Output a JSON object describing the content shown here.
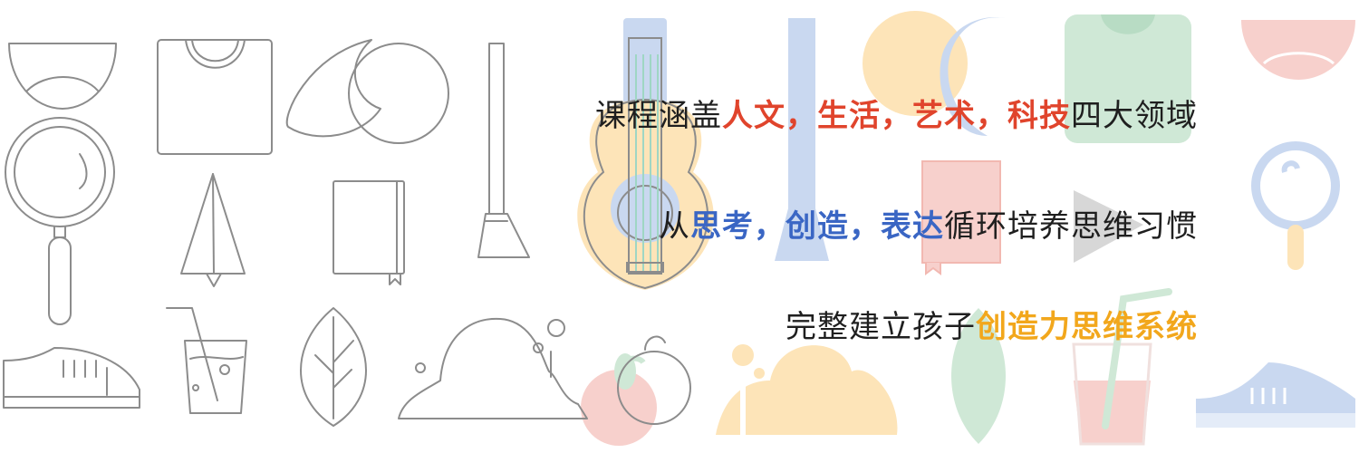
{
  "banner": {
    "line1": [
      {
        "text": "课程涵盖",
        "style": "plain"
      },
      {
        "text": "人文，生活，艺术，科技",
        "style": "red"
      },
      {
        "text": "四大领域",
        "style": "plain"
      }
    ],
    "line2": [
      {
        "text": "从",
        "style": "plain"
      },
      {
        "text": "思考，创造，表达",
        "style": "blue"
      },
      {
        "text": "循环培养思维习惯",
        "style": "plain"
      }
    ],
    "line3": [
      {
        "text": "完整建立孩子",
        "style": "plain"
      },
      {
        "text": "创造力思维系统",
        "style": "orange"
      }
    ]
  },
  "colors": {
    "outline": "#8c8c8c",
    "pastel_blue": "#c9d8f0",
    "pastel_orange": "#fde4b8",
    "pastel_green": "#cfe8d6",
    "pastel_pink": "#f7d0cc",
    "accent_red": "#e0442c",
    "accent_blue": "#3a66c4",
    "accent_orange": "#f2a71c"
  },
  "icons": [
    "half-bowl-icon",
    "tshirt-icon",
    "moon-icon",
    "sun-circle-icon",
    "toothbrush-icon",
    "magnifier-icon",
    "paper-plane-icon",
    "notebook-icon",
    "drink-cup-icon",
    "leaf-icon",
    "sneaker-icon",
    "blob-hill-icon",
    "apple-icon",
    "guitar-icon",
    "pastel-moon-icon",
    "pastel-notebook-icon",
    "pastel-leaf-icon",
    "pastel-cup-icon",
    "pastel-sneaker-icon",
    "pastel-magnifier-icon",
    "pastel-bowl-icon",
    "pastel-tshirt-icon",
    "pastel-toothbrush-icon",
    "pastel-blob-icon",
    "pastel-plane-icon"
  ]
}
